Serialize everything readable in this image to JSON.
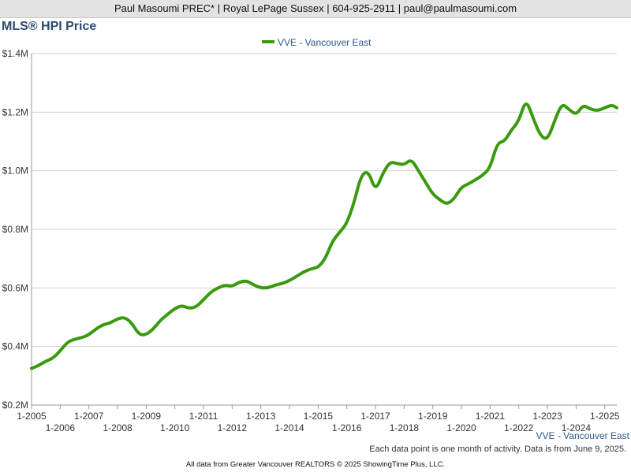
{
  "header": {
    "contact": "Paul Masoumi PREC* | Royal LePage Sussex | 604-925-2911 | paul@paulmasoumi.com"
  },
  "chart_title": "MLS® HPI Price",
  "footer": {
    "series_label": "VVE - Vancouver East",
    "note": "Each data point is one month of activity. Data is from June 9, 2025.",
    "credit": "All data from Greater Vancouver REALTORS © 2025 ShowingTime Plus, LLC."
  },
  "colors": {
    "series": "#3a9a0e",
    "grid": "#cfcfcf",
    "title": "#2b4a6f"
  },
  "chart_data": {
    "type": "line",
    "title": "MLS® HPI Price",
    "ylim": [
      0.2,
      1.4
    ],
    "xlim": [
      2005.0,
      2025.42
    ],
    "y_ticks": [
      0.2,
      0.4,
      0.6,
      0.8,
      1.0,
      1.2,
      1.4
    ],
    "y_tick_labels": [
      "$0.2M",
      "$0.4M",
      "$0.6M",
      "$0.8M",
      "$1.0M",
      "$1.2M",
      "$1.4M"
    ],
    "x_ticks_upper": [
      "1-2005",
      "1-2007",
      "1-2009",
      "1-2011",
      "1-2013",
      "1-2015",
      "1-2017",
      "1-2019",
      "1-2021",
      "1-2023",
      "1-2025"
    ],
    "x_ticks_lower": [
      "1-2006",
      "1-2008",
      "1-2010",
      "1-2012",
      "1-2014",
      "1-2016",
      "1-2018",
      "1-2020",
      "1-2022",
      "1-2024"
    ],
    "legend_position": "top-center",
    "grid": true,
    "series": [
      {
        "name": "VVE - Vancouver East",
        "x": [
          2005.0,
          2005.25,
          2005.5,
          2005.75,
          2006.0,
          2006.25,
          2006.5,
          2006.75,
          2007.0,
          2007.25,
          2007.5,
          2007.75,
          2008.0,
          2008.25,
          2008.5,
          2008.75,
          2009.0,
          2009.25,
          2009.5,
          2009.75,
          2010.0,
          2010.25,
          2010.5,
          2010.75,
          2011.0,
          2011.25,
          2011.5,
          2011.75,
          2012.0,
          2012.25,
          2012.5,
          2012.75,
          2013.0,
          2013.25,
          2013.5,
          2013.75,
          2014.0,
          2014.25,
          2014.5,
          2014.75,
          2015.0,
          2015.25,
          2015.5,
          2015.75,
          2016.0,
          2016.25,
          2016.5,
          2016.75,
          2017.0,
          2017.25,
          2017.5,
          2017.75,
          2018.0,
          2018.25,
          2018.5,
          2018.75,
          2019.0,
          2019.25,
          2019.5,
          2019.75,
          2020.0,
          2020.25,
          2020.5,
          2020.75,
          2021.0,
          2021.25,
          2021.5,
          2021.75,
          2022.0,
          2022.25,
          2022.5,
          2022.75,
          2023.0,
          2023.25,
          2023.5,
          2023.75,
          2024.0,
          2024.25,
          2024.5,
          2024.75,
          2025.0,
          2025.25,
          2025.42
        ],
        "y": [
          0.325,
          0.335,
          0.35,
          0.36,
          0.385,
          0.415,
          0.425,
          0.43,
          0.44,
          0.46,
          0.475,
          0.48,
          0.495,
          0.5,
          0.48,
          0.44,
          0.44,
          0.46,
          0.49,
          0.51,
          0.53,
          0.54,
          0.53,
          0.535,
          0.56,
          0.585,
          0.6,
          0.61,
          0.605,
          0.62,
          0.625,
          0.61,
          0.6,
          0.6,
          0.61,
          0.615,
          0.625,
          0.64,
          0.655,
          0.665,
          0.67,
          0.7,
          0.76,
          0.79,
          0.82,
          0.89,
          0.985,
          1.0,
          0.93,
          0.99,
          1.03,
          1.025,
          1.02,
          1.04,
          1.0,
          0.96,
          0.92,
          0.9,
          0.885,
          0.905,
          0.945,
          0.955,
          0.97,
          0.985,
          1.01,
          1.095,
          1.1,
          1.14,
          1.17,
          1.245,
          1.18,
          1.12,
          1.105,
          1.17,
          1.23,
          1.21,
          1.19,
          1.225,
          1.21,
          1.205,
          1.215,
          1.225,
          1.215
        ]
      }
    ]
  }
}
